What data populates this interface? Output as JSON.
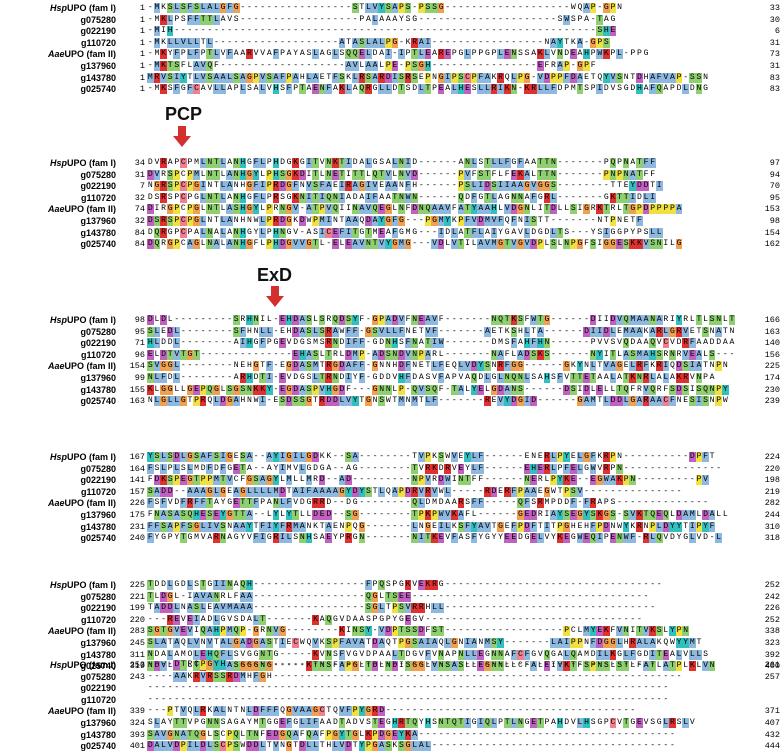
{
  "motifs": [
    {
      "label": "PCP"
    },
    {
      "label": "ExD"
    }
  ],
  "arrow_color": "#d32f2f",
  "blocks": [
    {
      "rows": [
        {
          "name": "HspUPO (fam I)",
          "italic_prefix": "Hsp",
          "suffix": "UPO (fam I)",
          "start": "1",
          "seq": "-MKSLSFSLALGFG-----------------STLVYSAPS-PSSG-------------------WQAP-GPN",
          "end": "33"
        },
        {
          "name": "g075280",
          "italic_prefix": "",
          "suffix": "g075280",
          "start": "1",
          "seq": "-MKLPSFFTTLAVS------------------PALAAAYSG---------------------SWSPA-TAG",
          "end": "30"
        },
        {
          "name": "g022190",
          "italic_prefix": "",
          "suffix": "g022190",
          "start": "1",
          "seq": "-MIH----------------------------------------------------------------SHE",
          "end": "6"
        },
        {
          "name": "g110720",
          "italic_prefix": "",
          "suffix": "g110720",
          "start": "1",
          "seq": "-MKLLVLLTL-------------------ATASLALPG-KRAI-----------------NAYTKA-GPS",
          "end": "31"
        },
        {
          "name": "AaeUPO (fam II)",
          "italic_prefix": "Aae",
          "suffix": "UPO (fam II)",
          "start": "1",
          "seq": "-MKYFPLFPTLVFAARVVAFPAYASLAGLSQQELDAI-IPTLEAREPGLPPGPLENSSAKLVNDEAHPWKPL-PPG",
          "end": "73"
        },
        {
          "name": "g137960",
          "italic_prefix": "",
          "suffix": "g137960",
          "start": "1",
          "seq": "-MKTSFLAVQF-------------------AVLAALPE-PSGH----------------EFRAP-GPF",
          "end": "31"
        },
        {
          "name": "g143780",
          "italic_prefix": "",
          "suffix": "g143780",
          "start": "1",
          "seq": "MRVSIYTLVSAALSAGPVSAFPAHLAETFSKLRSARDISRSEPNGIPSCPFAKRQLPG-VDPPFDAETQYVSNTDHAFVAP-SSN",
          "end": "83"
        },
        {
          "name": "g025740",
          "italic_prefix": "",
          "suffix": "g025740",
          "start": "1",
          "seq": "-MKSFGFCAVLLAPLSALVHSFPTAENFAKLAQRGLLDTSDLTPEALHESLLRIKN-KRLLFDPMTSPIDVSGDHAFQAPDLDNG",
          "end": "83"
        }
      ]
    },
    {
      "rows": [
        {
          "name": "HspUPO (fam I)",
          "italic_prefix": "Hsp",
          "suffix": "UPO (fam I)",
          "start": "34",
          "seq": "DVRAPCPMLNTLANHGFLPHDGKGITVNKTIDALGSALNID------ANLSTLLFGFAATTN-------PQPNATFF",
          "end": "97"
        },
        {
          "name": "g075280",
          "italic_prefix": "",
          "suffix": "g075280",
          "start": "31",
          "seq": "DVRSPCPMLNTLANHGYLPHSGKDITLNETITTLQTVLNVD------PVFSTFLFEKALTTN-------PNPNATFF",
          "end": "94"
        },
        {
          "name": "g022190",
          "italic_prefix": "",
          "suffix": "g022190",
          "start": "7",
          "seq": "NGRSPCPGINTLANHGFIPRDGFNVSFAEIRAGIVEAANFH------PSLIDSIIAAGVGGS--------TTEYDDTI",
          "end": "70"
        },
        {
          "name": "g110720",
          "italic_prefix": "",
          "suffix": "g110720",
          "start": "32",
          "seq": "DSRSPCPGLNTLANHGFLPRSGKNITIQNIADAIFAATNWN------QDFGTLAGNNAFGRL-------GKTTIDLI",
          "end": "95"
        },
        {
          "name": "AaeUPO (fam II)",
          "italic_prefix": "Aae",
          "suffix": "UPO (fam II)",
          "start": "74",
          "seq": "DIRGPCPGLNTLASHGYLPRNGV-ATPVQIINAVQEGLNFDNQAAVFATYAAHLVDGNLITDLLSIGRKTRLTGPDPPPPA",
          "end": "153"
        },
        {
          "name": "g137960",
          "italic_prefix": "",
          "suffix": "g137960",
          "start": "32",
          "seq": "DSRSPCPGLNTLANHNWLPRDGKDWPMINTAAQDAYGFG---PGMYKPFVDMVFQFNISTT-------NTPNETF",
          "end": "98"
        },
        {
          "name": "g143780",
          "italic_prefix": "",
          "suffix": "g143780",
          "start": "84",
          "seq": "DQRGPCPALNALANHGYLPHNGV-ASICEFITGTMEAFGMG---IDLATFLAIYGAVLDGDLTS---YSIGGPYPSLL",
          "end": "154"
        },
        {
          "name": "g025740",
          "italic_prefix": "",
          "suffix": "g025740",
          "start": "84",
          "seq": "DQRGPCAGLNALANHGFLPHDGVVGTL-ELEAVNTVYGMG---VDLVTILAVMGTVGVDPLSLNPGFSIGGESKKVSNILG",
          "end": "162"
        }
      ]
    },
    {
      "rows": [
        {
          "name": "HspUPO (fam I)",
          "italic_prefix": "Hsp",
          "suffix": "UPO (fam I)",
          "start": "98",
          "seq": "DLDL---------SRHNIL-EHDASLSRQDSYF-GPADVFNEAVF-------NQTKSFWTG------DIIDVQMAANARIYRLTLSNLTNPE",
          "end": "166"
        },
        {
          "name": "g075280",
          "italic_prefix": "",
          "suffix": "g075280",
          "start": "95",
          "seq": "SLEDL--------SFHNLL-EHDASLSRAWFF-GSVLLFNETVF-------AETKSHLTA------DIIDLEMAAKARLGRVETSNATNPT",
          "end": "163"
        },
        {
          "name": "g022190",
          "italic_prefix": "",
          "suffix": "g022190",
          "start": "71",
          "seq": "HLDDL--------AIHGFPGEVDGSMSRNDIFF-GDNHSFNATIW-------DMSFAHFHN------PVVSVQDAAQVCVDRFAADDAANPE",
          "end": "140"
        },
        {
          "name": "g110720",
          "italic_prefix": "",
          "suffix": "g110720",
          "start": "96",
          "seq": "ELDTVTGT--------------EHASLTRLDMP-ADSNDVNPARL-------NAFLADSKS------NYITLASMAHSRNRVEALS----PT",
          "end": "156"
        },
        {
          "name": "AaeUPO (fam II)",
          "italic_prefix": "Aae",
          "suffix": "UPO (fam II)",
          "start": "154",
          "seq": "SVGGL--------NEHGTF-EGDASMTRGDAFF-GNNHDFNETLFEQLVDYSNRFGG------GKYNLTVAGELRFKRIQDSIATNPN",
          "end": "225"
        },
        {
          "name": "g137960",
          "italic_prefix": "",
          "suffix": "g137960",
          "start": "99",
          "seq": "NLFDL--------ARHDTI-EVDGSLTRNDIYF-GDDVHFDASVFAPVAQDLGLNQNLSAHSFVTTETAALATKNRLALAKRVNPA",
          "end": "174"
        },
        {
          "name": "g143780",
          "italic_prefix": "",
          "suffix": "g143780",
          "start": "155",
          "seq": "KLGGLLGEPQGLSGSNKKY-EGDASPVHGDF---GNNLP-QVSQF-TALYELGDANS------DSIDLELLTQFRVQRFSDSISQNPY",
          "end": "230"
        },
        {
          "name": "g025740",
          "italic_prefix": "",
          "suffix": "g025740",
          "start": "163",
          "seq": "NLGLLGTPRQLDGAHNWI-ESDSSGTRDDLVYTGNSWTMNMTLF-------REVYDGID------GAMTLDDLGARAACFNESISNPW",
          "end": "239"
        }
      ]
    },
    {
      "rows": [
        {
          "name": "HspUPO (fam I)",
          "italic_prefix": "Hsp",
          "suffix": "UPO (fam I)",
          "start": "167",
          "seq": "YSLSDLGSAFSIGESA--AYIGILGDKK--SA--------TVPKSWVEYLF------ENERLPYELGFKRPN----------DPFT",
          "end": "224"
        },
        {
          "name": "g075280",
          "italic_prefix": "",
          "suffix": "g075280",
          "start": "164",
          "seq": "FSLPLSLMDFDFGETA--AYIMVLGDGA--AG--------TVRKDRVEYLF------EHERLPFELGWVRPN---------------",
          "end": "220"
        },
        {
          "name": "g022190",
          "italic_prefix": "",
          "suffix": "g022190",
          "start": "141",
          "seq": "FDKSPEGTPPMTVCFGSAGYLMLLMRD--AD---------NPVRDWINTFF------NERLPYKE--EGWAKPN---------PV",
          "end": "198"
        },
        {
          "name": "g110720",
          "italic_prefix": "",
          "suffix": "g110720",
          "start": "157",
          "seq": "SADD--AAAGLGEAGLLLLMDTAIFAAAAGYDYSTLQAPDRVRVWL-----RDERFPAAEGWTPSV---------------",
          "end": "219"
        },
        {
          "name": "AaeUPO (fam II)",
          "italic_prefix": "Aae",
          "suffix": "UPO (fam II)",
          "start": "226",
          "seq": "FSFVDFRFFTAYGETTFPANLFVDGRRD--DG--------QLDMDAARSFF-----QFSRMPDDF-FRAPS--------------",
          "end": "282"
        },
        {
          "name": "g137960",
          "italic_prefix": "",
          "suffix": "g137960",
          "start": "175",
          "seq": "FNASASQHESEYGTTA--LYLYTLLDED--SG--------TPKPWVKAFL------GEDRIAYSEGYSKGS-SVKTQEQLDAMLDALL",
          "end": "244"
        },
        {
          "name": "g143780",
          "italic_prefix": "",
          "suffix": "g143780",
          "start": "231",
          "seq": "FFSAPFSGLIVSNAAYTFIYFRMANKTAENPQG-------LNGEILKSFYAVTGEFPDFTITPGHEHFPDNWYKRNPLDYYTIPYF",
          "end": "310"
        },
        {
          "name": "g025740",
          "italic_prefix": "",
          "suffix": "g025740",
          "start": "240",
          "seq": "FYGPYTGMVARNAGYVFIGRILSNHSAEYPRGN-------NITKEVFASFYGYYEEDGELVYKEGWEQIPENWF-RLQVDYGLVD-L",
          "end": "318"
        }
      ]
    },
    {
      "rows": [
        {
          "name": "HspUPO (fam I)",
          "italic_prefix": "Hsp",
          "suffix": "UPO (fam I)",
          "start": "225",
          "seq": "TDDLGDLSTGIINAQH-----------------FPQSPGKVEKRG---------------------------------",
          "end": "252"
        },
        {
          "name": "g075280",
          "italic_prefix": "",
          "suffix": "g075280",
          "start": "221",
          "seq": "TLDGL-IAVANRLFAA-----------------QGLTSEE------------------------------------",
          "end": "242"
        },
        {
          "name": "g022190",
          "italic_prefix": "",
          "suffix": "g022190",
          "start": "199",
          "seq": "TADDLNASLEAVMAAA-----------------SGLTPSVRRHLL--------------------------------",
          "end": "226"
        },
        {
          "name": "g110720",
          "italic_prefix": "",
          "suffix": "g110720",
          "start": "220",
          "seq": "---REVEIADLGVSDALT-------KAQGVDAASPGPYGEGV---------------------------------",
          "end": "252"
        },
        {
          "name": "AaeUPO (fam II)",
          "italic_prefix": "Aae",
          "suffix": "UPO (fam II)",
          "start": "283",
          "seq": "SGTGVEVIQAHPMQP-GRNVG--------KINSY-VDPTSSDFST------------------PCLMYEKFVNITVKSLYPN",
          "end": "338"
        },
        {
          "name": "g137960",
          "italic_prefix": "",
          "suffix": "g137960",
          "start": "245",
          "seq": "SLATAQLVNVTALGADGASTIECWQVKSPFAVATDAQTPGSAIAQLGNIANMSY-------LAIPPNFDGGLHRALAKQWYYMT",
          "end": "323"
        },
        {
          "name": "g143780",
          "italic_prefix": "",
          "suffix": "g143780",
          "start": "311",
          "seq": "NDALAMOLEHQFLSVGGNTG-----KVNSFVGVDPAALTDGVFVNAPNLLEGNNAFCFGVQGALQAMDILKGLFGDITEALVLLS",
          "end": "392"
        },
        {
          "name": "g025740",
          "italic_prefix": "",
          "suffix": "g025740",
          "start": "319",
          "seq": "NDVLTWLTKPVLASGGGNG-----KTNSFAPGLTDLNDISGGLVNSASLLEGNNLLCFALEIVKTFSPNSLSTLFATLATPLKLVN",
          "end": "400"
        }
      ]
    },
    {
      "rows": [
        {
          "name": "HspUPO (fam I)",
          "italic_prefix": "Hsp",
          "suffix": "UPO (fam I)",
          "start": "253",
          "seq": "----DTRCPGYH-----------------------------------------------------------------",
          "end": "261"
        },
        {
          "name": "g075280",
          "italic_prefix": "",
          "suffix": "g075280",
          "start": "243",
          "seq": "----AAKRVRSSRDMHFGH--------------------------------------------------------------",
          "end": "257"
        },
        {
          "name": "g022190",
          "italic_prefix": "",
          "suffix": "g022190",
          "start": "",
          "seq": "-------------------------------------------------------------------------------",
          "end": ""
        },
        {
          "name": "g110720",
          "italic_prefix": "",
          "suffix": "g110720",
          "start": "",
          "seq": "-------------------------------------------------------------------------------",
          "end": ""
        },
        {
          "name": "AaeUPO (fam II)",
          "italic_prefix": "Aae",
          "suffix": "UPO (fam II)",
          "start": "339",
          "seq": "---PTVQLRKALNTNLDFFFQGVAAGCTQVFPYGRD--------------------------------------",
          "end": "371"
        },
        {
          "name": "g137960",
          "italic_prefix": "",
          "suffix": "g137960",
          "start": "324",
          "seq": "SLAYTTVPGNNSAGAYMTGGEFGLIFAADTADVSTEGHRTQYHSNTQTIGIQLPTLNGETPAHDVLHSGPCVTGEVSGLRSLV",
          "end": "407"
        },
        {
          "name": "g143780",
          "italic_prefix": "",
          "suffix": "g143780",
          "start": "393",
          "seq": "SAVGNATQGLSCPQLTNFEDGQAFQAFPGYTGLKPDGEYKA---------------------------------------",
          "end": "432"
        },
        {
          "name": "g025740",
          "italic_prefix": "",
          "suffix": "g025740",
          "start": "401",
          "seq": "DALVDPILDLSCPSWDDLTVNGTDLLTHLVDTYPGASKSGLAL-------------------------------------",
          "end": "444"
        }
      ]
    }
  ]
}
